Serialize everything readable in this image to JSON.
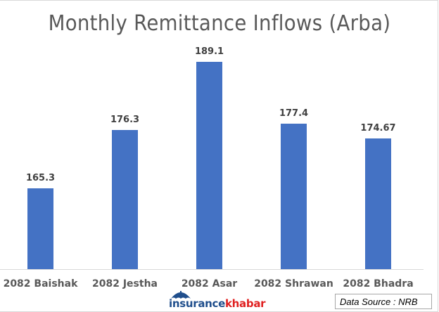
{
  "chart_data": {
    "type": "bar",
    "title": "Monthly Remittance Inflows (Arba)",
    "xlabel": "",
    "ylabel": "",
    "categories": [
      "2082 Baishak",
      "2082 Jestha",
      "2082 Asar",
      "2082 Shrawan",
      "2082 Bhadra"
    ],
    "values": [
      165.3,
      176.3,
      189.1,
      177.4,
      174.67
    ],
    "value_labels": [
      "165.3",
      "176.3",
      "189.1",
      "177.4",
      "174.67"
    ],
    "bar_color": "#4472C4",
    "grid": false,
    "legend": null,
    "data_labels": true
  },
  "branding": {
    "logo_part1": "insurance",
    "logo_part2": "khabar",
    "logo_color1": "#1f4e8c",
    "logo_color2": "#e02020"
  },
  "source_note": "Data Source : NRB"
}
